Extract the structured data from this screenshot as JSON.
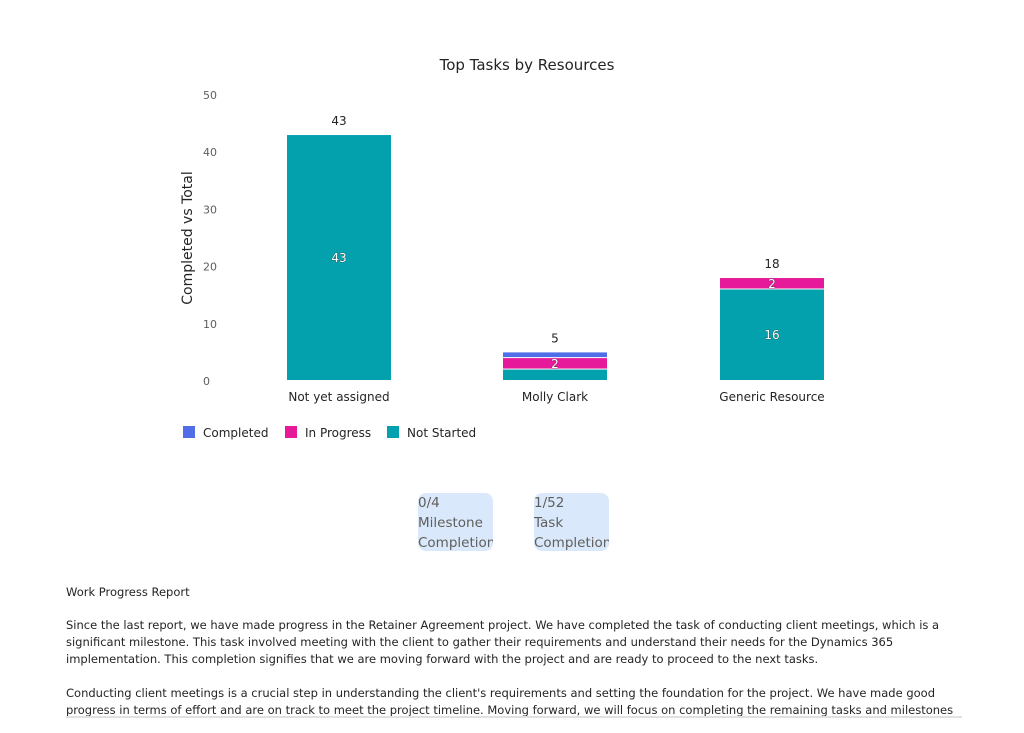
{
  "chart_data": {
    "type": "bar",
    "stacked": true,
    "title": "Top Tasks by Resources",
    "ylabel": "Completed vs Total",
    "xlabel": "",
    "ylim": [
      0,
      50
    ],
    "yticks": [
      0,
      10,
      20,
      30,
      40,
      50
    ],
    "categories": [
      "Not yet assigned",
      "Molly Clark",
      "Generic Resource"
    ],
    "totals": [
      43,
      5,
      18
    ],
    "series": [
      {
        "name": "Completed",
        "color": "#4f6ee8",
        "values": [
          0,
          1,
          0
        ],
        "labels": [
          "",
          "",
          ""
        ]
      },
      {
        "name": "In Progress",
        "color": "#e6199b",
        "values": [
          0,
          2,
          2
        ],
        "labels": [
          "",
          "2",
          "2"
        ]
      },
      {
        "name": "Not Started",
        "color": "#03a1ad",
        "values": [
          43,
          2,
          16
        ],
        "labels": [
          "43",
          "",
          "16"
        ]
      }
    ],
    "legend": "bottom-left",
    "grid": false
  },
  "kpis": {
    "milestone": {
      "value": "0/4",
      "line1": "Milestone",
      "line2": "Completion"
    },
    "task": {
      "value": "1/52",
      "line1": "Task",
      "line2": "Completion"
    }
  },
  "report": {
    "title": "Work Progress Report",
    "paragraph1": "Since the last report, we have made progress in the Retainer Agreement project. We have completed the task of conducting client meetings, which is a significant milestone. This task involved meeting with the client to gather their requirements and understand their needs for the Dynamics 365 implementation. This completion signifies that we are moving forward with the project and are ready to proceed to the next tasks.",
    "paragraph2": "Conducting client meetings is a crucial step in understanding the client's requirements and setting the foundation for the project. We have made good progress in terms of effort and are on track to meet the project timeline. Moving forward, we will focus on completing the remaining tasks and milestones as planned."
  }
}
